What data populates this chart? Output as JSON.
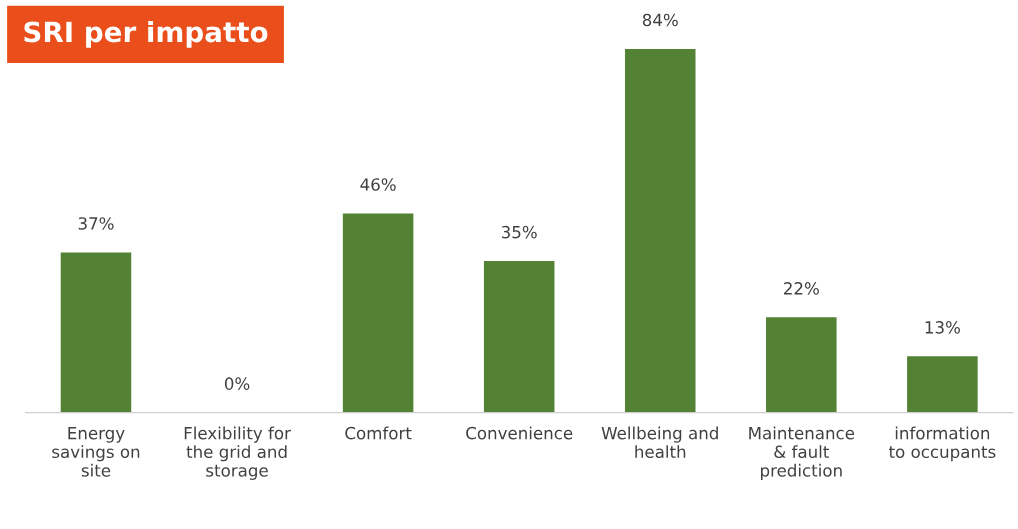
{
  "chart_data": {
    "type": "bar",
    "title": "SRI per impatto",
    "categories": [
      "Energy\nsavings on\nsite",
      "Flexibility for\nthe grid and\nstorage",
      "Comfort",
      "Convenience",
      "Wellbeing and\nhealth",
      "Maintenance\n& fault\nprediction",
      "information\nto occupants"
    ],
    "values": [
      37,
      0,
      46,
      35,
      84,
      22,
      13
    ],
    "value_labels": [
      "37%",
      "0%",
      "46%",
      "35%",
      "84%",
      "22%",
      "13%"
    ],
    "color": "#548235",
    "tick_labels": "x",
    "grid": false,
    "legend": false
  }
}
